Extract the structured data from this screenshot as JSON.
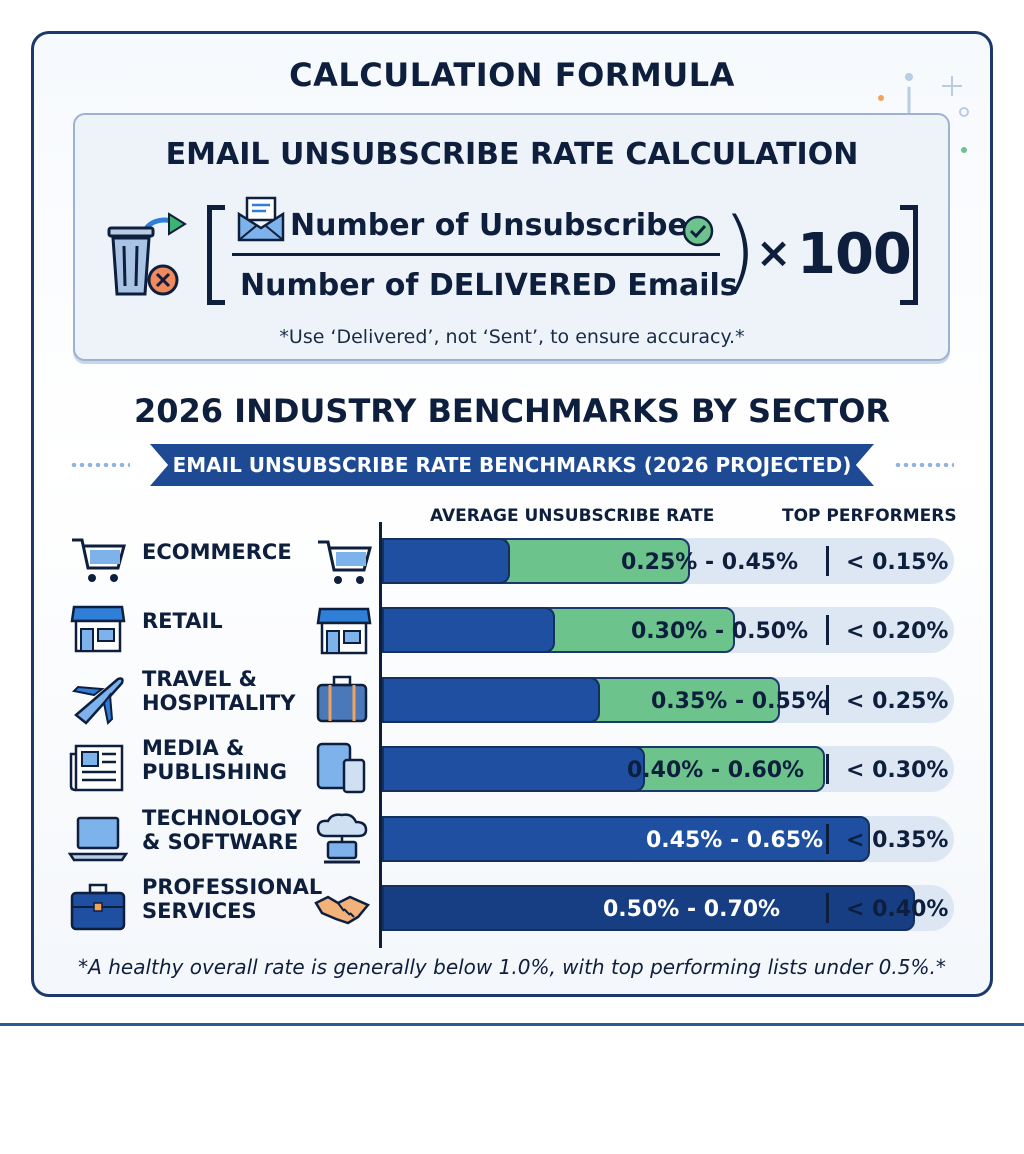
{
  "formula": {
    "heading": "CALCULATION FORMULA",
    "title": "EMAIL UNSUBSCRIBE RATE CALCULATION",
    "numerator": "Number of Unsubscribes",
    "denominator": "Number of DELIVERED Emails",
    "times": "×",
    "multiplier": "100",
    "note": "*Use ‘Delivered’, not ‘Sent’, to ensure accuracy.*"
  },
  "benchmarks": {
    "heading": "2026 INDUSTRY BENCHMARKS BY SECTOR",
    "ribbon": "EMAIL UNSUBSCRIBE RATE BENCHMARKS (2026 PROJECTED)",
    "col_average": "AVERAGE UNSUBSCRIBE RATE",
    "col_top": "TOP PERFORMERS",
    "footnote": "*A healthy overall rate is generally below 1.0%, with top performing lists under 0.5%.*"
  },
  "colors": {
    "navy": "#0e1f3d",
    "blue_bar": "#1e4fa0",
    "green_bar": "#6cc48c",
    "track": "#dde7f3",
    "ribbon": "#1e4a93"
  },
  "chart_data": {
    "type": "bar",
    "orientation": "horizontal",
    "title": "EMAIL UNSUBSCRIBE RATE BENCHMARKS (2026 PROJECTED)",
    "xlabel": "AVERAGE UNSUBSCRIBE RATE",
    "ylabel": "",
    "categories": [
      "ECOMMERCE",
      "RETAIL",
      "TRAVEL & HOSPITALITY",
      "MEDIA & PUBLISHING",
      "TECHNOLOGY & SOFTWARE",
      "PROFESSIONAL SERVICES"
    ],
    "category_icons": [
      [
        "shopping-cart-icon",
        "shopping-cart-icon"
      ],
      [
        "storefront-icon",
        "storefront-icon"
      ],
      [
        "airplane-icon",
        "suitcase-icon"
      ],
      [
        "newspaper-icon",
        "tablet-phone-icon"
      ],
      [
        "laptop-icon",
        "cloud-computer-icon"
      ],
      [
        "briefcase-icon",
        "handshake-icon"
      ]
    ],
    "series": [
      {
        "values": [
          0.25,
          0.3,
          0.35,
          0.4,
          0.45,
          0.5
        ]
      },
      {
        "values": [
          0.45,
          0.5,
          0.55,
          0.6,
          0.65,
          0.7
        ]
      }
    ],
    "range_labels": [
      "0.25% - 0.45%",
      "0.30% - 0.50%",
      "0.35% - 0.55%",
      "0.40% - 0.60%",
      "0.45% - 0.65%",
      "0.50% - 0.70%"
    ],
    "top_performers": [
      "< 0.15%",
      "< 0.20%",
      "< 0.25%",
      "< 0.30%",
      "< 0.35%",
      "< 0.40%"
    ],
    "grid": false,
    "legend": "none"
  }
}
